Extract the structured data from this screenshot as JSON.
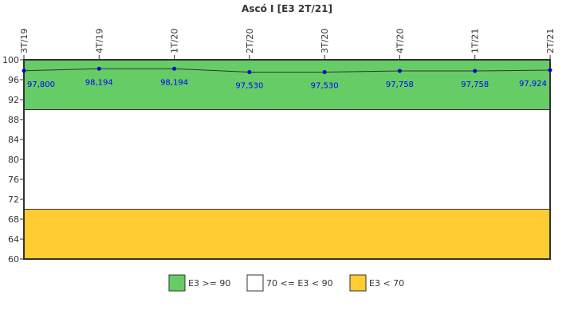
{
  "chart_data": {
    "type": "line",
    "title": "Ascó I [E3 2T/21]",
    "categories": [
      "3T/19",
      "4T/19",
      "1T/20",
      "2T/20",
      "3T/20",
      "4T/20",
      "1T/21",
      "2T/21"
    ],
    "values": [
      97.8,
      98.194,
      98.194,
      97.53,
      97.53,
      97.758,
      97.758,
      97.924
    ],
    "value_labels": [
      "97,800",
      "98,194",
      "98,194",
      "97,530",
      "97,530",
      "97,758",
      "97,758",
      "97,924"
    ],
    "ylim": [
      60,
      100
    ],
    "yticks": [
      60,
      64,
      68,
      72,
      76,
      80,
      84,
      88,
      92,
      96,
      100
    ],
    "bands": [
      {
        "from": 90,
        "to": 100,
        "color": "#66cc66",
        "label": "E3 >= 90"
      },
      {
        "from": 70,
        "to": 90,
        "color": "#ffffff",
        "label": "70 <= E3 < 90"
      },
      {
        "from": 60,
        "to": 70,
        "color": "#ffcc33",
        "label": "E3 < 70"
      }
    ],
    "line_color": "#333333",
    "point_color": "#0000cc",
    "label_color": "#0000ff",
    "legend_position": "bottom",
    "grid": false
  }
}
